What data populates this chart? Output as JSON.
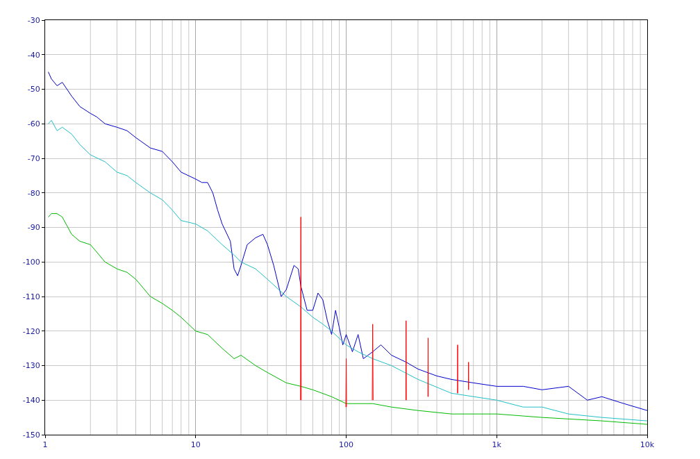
{
  "chart_data": {
    "type": "line",
    "log": "x",
    "grid": true,
    "xlim": [
      1,
      10000
    ],
    "xticks": [
      1,
      10,
      100,
      {
        "value": 1000,
        "label": "1k"
      },
      {
        "value": 10000,
        "label": "10k"
      }
    ],
    "ylim": [
      -150,
      -30
    ],
    "yticks": [
      -150,
      -140,
      -130,
      -120,
      -110,
      -100,
      -90,
      -80,
      -70,
      -60,
      -50,
      -40,
      -30
    ],
    "series": [
      {
        "color": "#0000cc",
        "x": [
          1.05,
          1.1,
          1.2,
          1.3,
          1.5,
          1.7,
          2,
          2.2,
          2.5,
          3,
          3.5,
          4,
          5,
          6,
          7,
          8,
          10,
          11,
          12,
          13,
          14,
          15,
          17,
          18,
          19,
          20,
          22,
          25,
          28,
          30,
          33,
          37,
          40,
          45,
          48,
          50,
          55,
          60,
          65,
          70,
          75,
          80,
          85,
          90,
          95,
          100,
          110,
          120,
          130,
          150,
          170,
          200,
          250,
          300,
          400,
          500,
          700,
          1000,
          1500,
          2000,
          3000,
          4000,
          5000,
          7000,
          10000
        ],
        "values": [
          -45,
          -47,
          -49,
          -48,
          -52,
          -55,
          -57,
          -58,
          -60,
          -61,
          -62,
          -64,
          -67,
          -68,
          -71,
          -74,
          -76,
          -77,
          -77,
          -80,
          -85,
          -89,
          -94,
          -102,
          -104,
          -101,
          -95,
          -93,
          -92,
          -95,
          -101,
          -110,
          -108,
          -101,
          -102,
          -107,
          -114,
          -114,
          -109,
          -111,
          -117,
          -121,
          -114,
          -119,
          -124,
          -121,
          -126,
          -121,
          -128,
          -126,
          -124,
          -127,
          -129,
          -131,
          -133,
          -134,
          -135,
          -136,
          -136,
          -137,
          -136,
          -140,
          -139,
          -141,
          -143
        ]
      },
      {
        "color": "#20c0c8",
        "x": [
          1.05,
          1.1,
          1.2,
          1.3,
          1.5,
          1.7,
          2,
          2.5,
          3,
          3.5,
          4,
          5,
          6,
          7,
          8,
          10,
          12,
          15,
          18,
          20,
          25,
          30,
          40,
          50,
          60,
          70,
          80,
          100,
          120,
          150,
          200,
          300,
          500,
          1000,
          1500,
          2000,
          3000,
          5000,
          10000
        ],
        "values": [
          -60,
          -59,
          -62,
          -61,
          -63,
          -66,
          -69,
          -71,
          -74,
          -75,
          -77,
          -80,
          -82,
          -85,
          -88,
          -89,
          -91,
          -95,
          -98,
          -100,
          -102,
          -105,
          -110,
          -113,
          -116,
          -118,
          -120,
          -124,
          -126,
          -128,
          -130,
          -134,
          -138,
          -140,
          -142,
          -142,
          -144,
          -145,
          -146
        ]
      },
      {
        "color": "#00bb00",
        "x": [
          1.05,
          1.1,
          1.2,
          1.3,
          1.5,
          1.7,
          2,
          2.5,
          3,
          3.5,
          4,
          5,
          6,
          7,
          8,
          10,
          12,
          15,
          18,
          20,
          25,
          30,
          40,
          50,
          60,
          80,
          100,
          150,
          200,
          300,
          500,
          1000,
          2000,
          5000,
          10000
        ],
        "values": [
          -87,
          -86,
          -86,
          -87,
          -92,
          -94,
          -95,
          -100,
          -102,
          -103,
          -105,
          -110,
          -112,
          -114,
          -116,
          -120,
          -121,
          -125,
          -128,
          -127,
          -130,
          -132,
          -135,
          -136,
          -137,
          -139,
          -141,
          -141,
          -142,
          -143,
          -144,
          -144,
          -145,
          -146,
          -147
        ]
      },
      {
        "color": "#ff0000",
        "x": [
          49.7,
          50,
          50.3,
          75,
          99.5,
          100,
          100.5,
          125,
          149,
          150,
          151,
          200,
          249,
          250,
          251,
          300,
          349,
          350,
          351,
          450,
          549,
          550,
          551,
          600,
          649,
          650,
          651
        ],
        "values": [
          -140,
          -87,
          -140,
          null,
          -142,
          -128,
          -142,
          null,
          -140,
          -118,
          -140,
          null,
          -140,
          -117,
          -140,
          null,
          -139,
          -122,
          -139,
          null,
          -138,
          -124,
          -138,
          null,
          -137,
          -129,
          -137
        ]
      }
    ]
  }
}
